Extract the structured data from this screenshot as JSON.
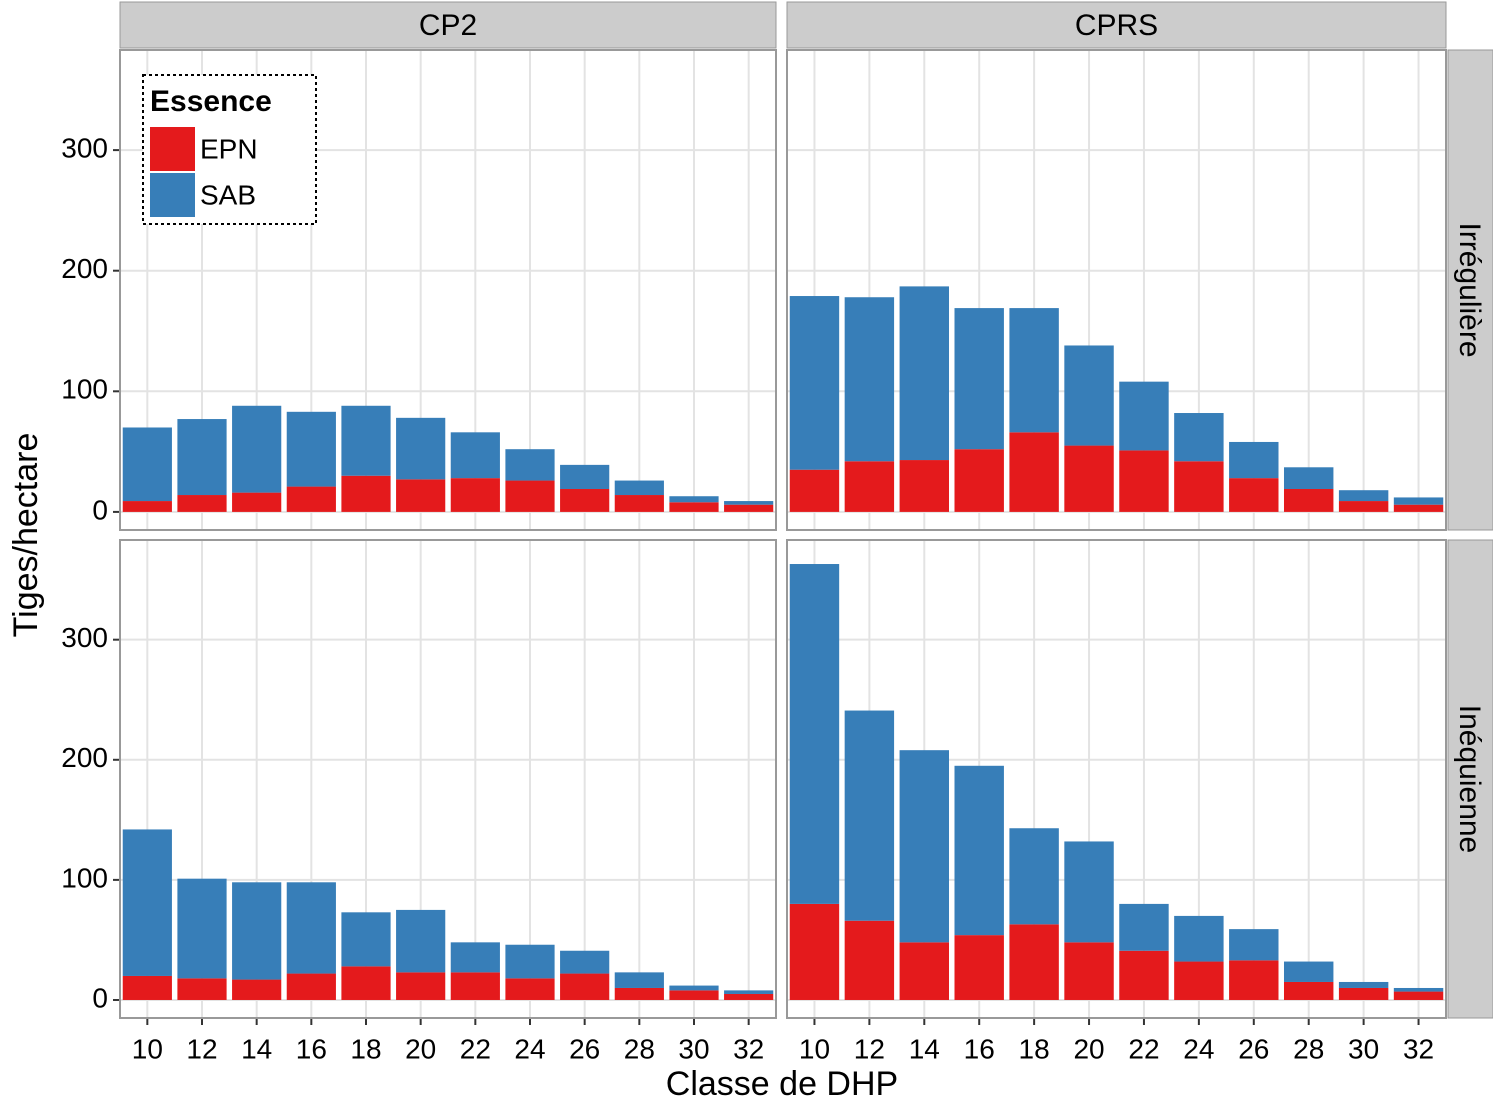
{
  "chart_data": {
    "type": "bar",
    "stacked": true,
    "x_label": "Classe de DHP",
    "y_label": "Tiges/hectare",
    "legend_title": "Essence",
    "columns": [
      "CP2",
      "CPRS"
    ],
    "rows": [
      "Irrégulière",
      "Inéquienne"
    ],
    "categories": [
      "10",
      "12",
      "14",
      "16",
      "18",
      "20",
      "22",
      "24",
      "26",
      "28",
      "30",
      "32"
    ],
    "ylim": [
      -15,
      383
    ],
    "yticks": [
      0,
      100,
      200,
      300
    ],
    "grid": true,
    "series": [
      {
        "name": "EPN",
        "color": "#e41a1c",
        "values": [
          [
            9,
            14,
            16,
            21,
            30,
            27,
            28,
            26,
            19,
            14,
            8,
            6
          ],
          [
            35,
            42,
            43,
            52,
            66,
            55,
            51,
            42,
            28,
            19,
            9,
            6
          ],
          [
            20,
            18,
            17,
            22,
            28,
            23,
            23,
            18,
            22,
            10,
            8,
            5
          ],
          [
            80,
            66,
            48,
            54,
            63,
            48,
            41,
            32,
            33,
            15,
            10,
            7
          ]
        ]
      },
      {
        "name": "SAB",
        "color": "#377eb8",
        "values": [
          [
            61,
            63,
            72,
            62,
            58,
            51,
            38,
            26,
            20,
            12,
            5,
            3
          ],
          [
            144,
            136,
            144,
            117,
            103,
            83,
            57,
            40,
            30,
            18,
            9,
            6
          ],
          [
            122,
            83,
            81,
            76,
            45,
            52,
            25,
            28,
            19,
            13,
            4,
            3
          ],
          [
            283,
            175,
            160,
            141,
            80,
            84,
            39,
            38,
            26,
            17,
            5,
            3
          ]
        ]
      }
    ]
  }
}
